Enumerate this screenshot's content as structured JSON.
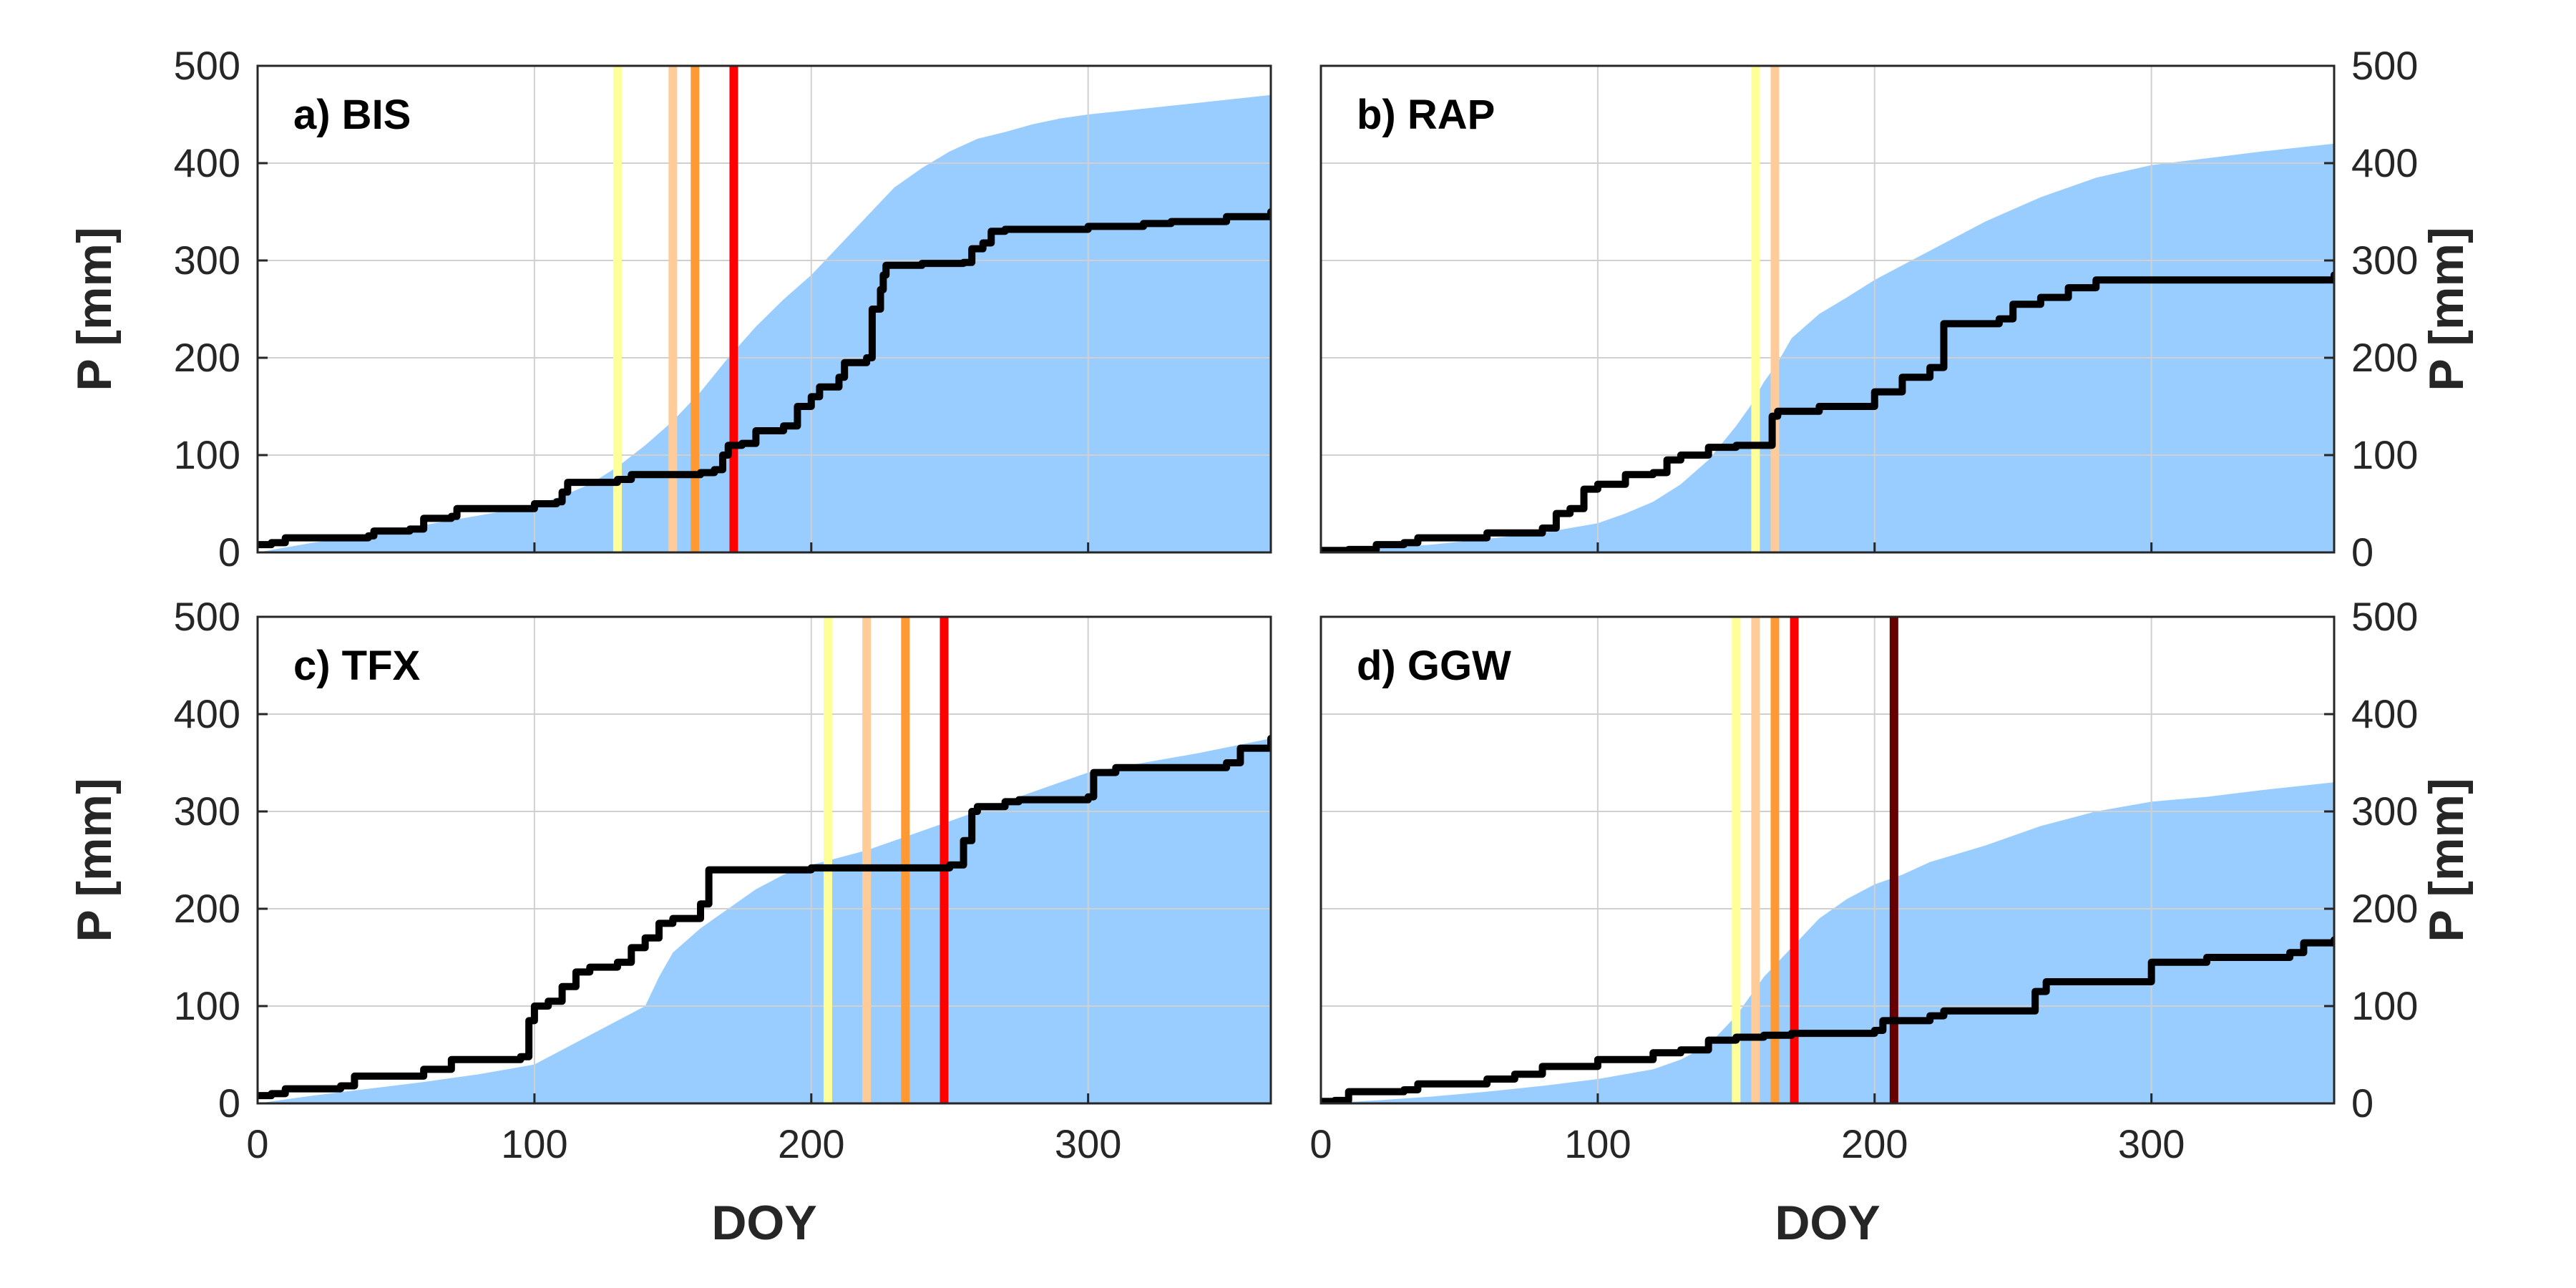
{
  "chart_data": [
    {
      "panel": "a) BIS",
      "type": "area",
      "title": "a) BIS",
      "xlabel": "",
      "ylabel": "P [mm]",
      "ylabel_side": "left",
      "xlim": [
        0,
        366
      ],
      "ylim": [
        0,
        500
      ],
      "xticks": [
        0,
        100,
        200,
        300
      ],
      "yticks": [
        0,
        100,
        200,
        300,
        400,
        500
      ],
      "show_xticklabels": false,
      "grid": true,
      "area_series": {
        "color": "#99ccff",
        "x": [
          0,
          20,
          40,
          60,
          80,
          100,
          110,
          120,
          130,
          140,
          150,
          160,
          170,
          180,
          190,
          200,
          210,
          220,
          230,
          240,
          250,
          260,
          270,
          280,
          290,
          300,
          320,
          340,
          366
        ],
        "y": [
          0,
          10,
          18,
          28,
          38,
          48,
          58,
          70,
          88,
          110,
          135,
          165,
          200,
          232,
          260,
          285,
          315,
          345,
          375,
          395,
          412,
          425,
          432,
          440,
          446,
          450,
          456,
          462,
          470
        ]
      },
      "line_series": {
        "color": "#000000",
        "x": [
          0,
          5,
          10,
          40,
          42,
          55,
          60,
          70,
          72,
          100,
          108,
          110,
          112,
          130,
          135,
          160,
          165,
          168,
          170,
          175,
          180,
          190,
          195,
          200,
          203,
          210,
          212,
          220,
          222,
          225,
          226,
          227,
          240,
          255,
          258,
          262,
          265,
          270,
          300,
          320,
          330,
          350,
          366
        ],
        "y": [
          8,
          10,
          15,
          17,
          22,
          24,
          35,
          37,
          45,
          50,
          52,
          62,
          72,
          75,
          80,
          82,
          85,
          100,
          110,
          112,
          125,
          130,
          150,
          160,
          170,
          180,
          195,
          200,
          250,
          270,
          285,
          295,
          297,
          298,
          312,
          318,
          330,
          332,
          335,
          338,
          340,
          345,
          350
        ]
      },
      "vlines": [
        {
          "x": 130,
          "color": "#ffff99"
        },
        {
          "x": 150,
          "color": "#ffcc99"
        },
        {
          "x": 158,
          "color": "#ff9933"
        },
        {
          "x": 172,
          "color": "#ff0000"
        }
      ]
    },
    {
      "panel": "b) RAP",
      "type": "area",
      "title": "b) RAP",
      "xlabel": "",
      "ylabel": "P [mm]",
      "ylabel_side": "right",
      "xlim": [
        0,
        366
      ],
      "ylim": [
        0,
        500
      ],
      "xticks": [
        0,
        100,
        200,
        300
      ],
      "yticks": [
        0,
        100,
        200,
        300,
        400,
        500
      ],
      "show_xticklabels": false,
      "grid": true,
      "area_series": {
        "color": "#99ccff",
        "x": [
          0,
          20,
          40,
          60,
          80,
          100,
          110,
          120,
          130,
          140,
          150,
          155,
          160,
          165,
          170,
          180,
          190,
          200,
          220,
          240,
          260,
          280,
          300,
          320,
          340,
          366
        ],
        "y": [
          0,
          4,
          8,
          14,
          20,
          30,
          40,
          52,
          70,
          95,
          130,
          150,
          175,
          195,
          220,
          245,
          262,
          280,
          310,
          340,
          365,
          385,
          398,
          405,
          412,
          420
        ]
      },
      "line_series": {
        "color": "#000000",
        "x": [
          0,
          10,
          20,
          30,
          35,
          60,
          80,
          85,
          90,
          95,
          100,
          110,
          120,
          125,
          130,
          140,
          150,
          160,
          163,
          165,
          180,
          200,
          210,
          220,
          225,
          245,
          250,
          260,
          270,
          280,
          366
        ],
        "y": [
          2,
          3,
          8,
          10,
          15,
          20,
          25,
          40,
          45,
          65,
          70,
          80,
          82,
          95,
          100,
          108,
          110,
          110,
          140,
          145,
          150,
          165,
          180,
          190,
          235,
          240,
          255,
          262,
          272,
          280,
          285
        ]
      },
      "vlines": [
        {
          "x": 157,
          "color": "#ffff99"
        },
        {
          "x": 164,
          "color": "#ffcc99"
        }
      ]
    },
    {
      "panel": "c) TFX",
      "type": "area",
      "title": "c) TFX",
      "xlabel": "DOY",
      "ylabel": "P [mm]",
      "ylabel_side": "left",
      "xlim": [
        0,
        366
      ],
      "ylim": [
        0,
        500
      ],
      "xticks": [
        0,
        100,
        200,
        300
      ],
      "yticks": [
        0,
        100,
        200,
        300,
        400,
        500
      ],
      "show_xticklabels": true,
      "grid": true,
      "area_series": {
        "color": "#99ccff",
        "x": [
          0,
          20,
          40,
          60,
          80,
          100,
          110,
          120,
          130,
          140,
          145,
          150,
          160,
          170,
          180,
          190,
          200,
          220,
          240,
          260,
          280,
          300,
          320,
          340,
          366
        ],
        "y": [
          0,
          8,
          15,
          22,
          30,
          40,
          55,
          70,
          85,
          100,
          130,
          155,
          180,
          200,
          220,
          235,
          245,
          260,
          280,
          300,
          320,
          340,
          350,
          360,
          375
        ]
      },
      "line_series": {
        "color": "#000000",
        "x": [
          0,
          5,
          10,
          30,
          35,
          60,
          70,
          95,
          98,
          100,
          105,
          110,
          115,
          120,
          130,
          135,
          140,
          145,
          150,
          160,
          163,
          200,
          250,
          255,
          258,
          260,
          270,
          275,
          300,
          302,
          310,
          350,
          355,
          366
        ],
        "y": [
          8,
          10,
          15,
          18,
          28,
          35,
          45,
          48,
          85,
          100,
          105,
          120,
          135,
          140,
          145,
          160,
          170,
          185,
          190,
          205,
          240,
          242,
          245,
          270,
          300,
          305,
          310,
          312,
          315,
          340,
          345,
          350,
          365,
          375
        ]
      },
      "vlines": [
        {
          "x": 206,
          "color": "#ffff99"
        },
        {
          "x": 220,
          "color": "#ffcc99"
        },
        {
          "x": 234,
          "color": "#ff9933"
        },
        {
          "x": 248,
          "color": "#ff0000"
        }
      ]
    },
    {
      "panel": "d) GGW",
      "type": "area",
      "title": "d) GGW",
      "xlabel": "DOY",
      "ylabel": "P [mm]",
      "ylabel_side": "right",
      "xlim": [
        0,
        366
      ],
      "ylim": [
        0,
        500
      ],
      "xticks": [
        0,
        100,
        200,
        300
      ],
      "yticks": [
        0,
        100,
        200,
        300,
        400,
        500
      ],
      "show_xticklabels": true,
      "grid": true,
      "area_series": {
        "color": "#99ccff",
        "x": [
          0,
          20,
          40,
          60,
          80,
          100,
          120,
          130,
          140,
          150,
          160,
          170,
          180,
          190,
          200,
          210,
          220,
          240,
          260,
          280,
          300,
          320,
          340,
          366
        ],
        "y": [
          0,
          3,
          7,
          12,
          18,
          25,
          35,
          45,
          60,
          90,
          130,
          160,
          190,
          210,
          225,
          235,
          248,
          265,
          285,
          300,
          310,
          315,
          322,
          330
        ]
      },
      "line_series": {
        "color": "#000000",
        "x": [
          0,
          5,
          10,
          30,
          35,
          60,
          70,
          80,
          100,
          120,
          130,
          140,
          150,
          160,
          170,
          200,
          203,
          220,
          225,
          255,
          258,
          262,
          300,
          320,
          350,
          355,
          366
        ],
        "y": [
          2,
          3,
          12,
          14,
          20,
          25,
          30,
          38,
          45,
          52,
          55,
          65,
          68,
          70,
          72,
          75,
          85,
          90,
          95,
          95,
          115,
          125,
          145,
          150,
          155,
          165,
          168
        ]
      },
      "vlines": [
        {
          "x": 150,
          "color": "#ffff99"
        },
        {
          "x": 157,
          "color": "#ffcc99"
        },
        {
          "x": 164,
          "color": "#ff9933"
        },
        {
          "x": 171,
          "color": "#ff0000"
        },
        {
          "x": 207,
          "color": "#660000"
        }
      ]
    }
  ]
}
